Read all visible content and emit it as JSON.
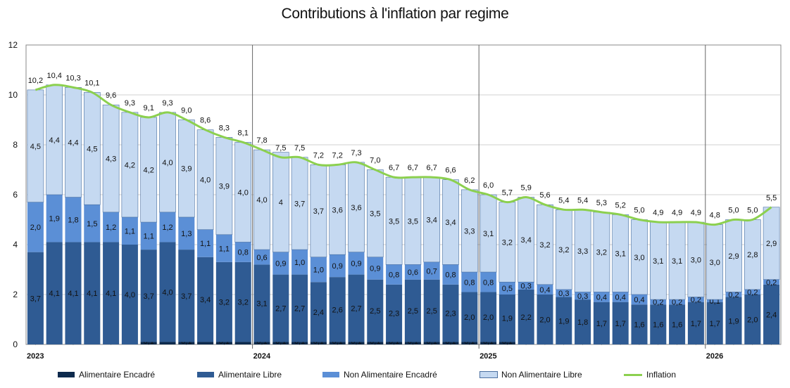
{
  "chart_data": {
    "type": "bar",
    "title": "Contributions à l'inflation par regime",
    "xlabel": "",
    "ylabel": "",
    "ylim": [
      0,
      12
    ],
    "yticks": [
      "0",
      "2",
      "4",
      "6",
      "8",
      "10",
      "12"
    ],
    "grid": true,
    "legend_position": "bottom",
    "year_labels": [
      {
        "label": "2023",
        "index": 0
      },
      {
        "label": "2024",
        "index": 12
      },
      {
        "label": "2025",
        "index": 24
      },
      {
        "label": "2026",
        "index": 36
      }
    ],
    "series": [
      {
        "name": "Alimentaire Encadré",
        "color": "#0d2a4d",
        "values": [
          0.0,
          0.0,
          0.0,
          0.0,
          0.0,
          0.0,
          0.1,
          0.1,
          0.1,
          0.1,
          0.1,
          0.1,
          0.1,
          0.1,
          0.1,
          0.1,
          0.1,
          0.1,
          0.1,
          0.1,
          0.1,
          0.1,
          0.1,
          0.1,
          0.1,
          0.1,
          0.0,
          0.0,
          0.0,
          0.0,
          0.0,
          0.0,
          0.0,
          0.0,
          0.0,
          0.0,
          0.0,
          0.0,
          0.0,
          0.0
        ],
        "labels": [
          "0,0",
          "",
          "0,0",
          "",
          "0,0",
          "",
          "0,1",
          "",
          "0,1",
          "",
          "0,1",
          "",
          "0,1",
          "0,1",
          "0,1",
          "0,1",
          "0,1",
          "0,1",
          "0,1",
          "0,1",
          "0,1",
          "0,1",
          "0,1",
          "0,1",
          "0,1",
          "0,1",
          "0,0",
          "0,0",
          "0,0",
          "0,0",
          "0,0",
          "0,0",
          "0,0",
          "0,0",
          "0,0",
          "0,0",
          "0,0",
          "0,0",
          "0,0",
          "0,0"
        ]
      },
      {
        "name": "Alimentaire Libre",
        "color": "#2f5b93",
        "values": [
          3.7,
          4.1,
          4.1,
          4.1,
          4.1,
          4.0,
          3.7,
          4.0,
          3.7,
          3.4,
          3.2,
          3.2,
          3.1,
          2.7,
          2.7,
          2.4,
          2.6,
          2.7,
          2.5,
          2.3,
          2.5,
          2.5,
          2.3,
          2.0,
          2.0,
          1.9,
          2.2,
          2.0,
          1.9,
          1.8,
          1.7,
          1.7,
          1.6,
          1.6,
          1.6,
          1.7,
          1.7,
          1.9,
          2.0,
          2.4
        ],
        "labels": [
          "3,7",
          "4,1",
          "4,1",
          "4,1",
          "4,1",
          "4,0",
          "3,7",
          "4,0",
          "3,7",
          "3,4",
          "3,2",
          "3,2",
          "3,1",
          "2,7",
          "2,7",
          "2,4",
          "2,6",
          "2,7",
          "2,5",
          "2,3",
          "2,5",
          "2,5",
          "2,3",
          "2,0",
          "2,0",
          "1,9",
          "2,2",
          "2,0",
          "1,9",
          "1,8",
          "1,7",
          "1,7",
          "1,6",
          "1,6",
          "1,6",
          "1,7",
          "1,7",
          "1,9",
          "2,0",
          "2,4"
        ]
      },
      {
        "name": "Non Alimentaire Encadré",
        "color": "#5b8fd6",
        "values": [
          2.0,
          1.9,
          1.8,
          1.5,
          1.2,
          1.1,
          1.1,
          1.2,
          1.3,
          1.1,
          1.1,
          0.8,
          0.6,
          0.9,
          1.0,
          1.0,
          0.9,
          0.9,
          0.9,
          0.8,
          0.6,
          0.7,
          0.8,
          0.8,
          0.8,
          0.5,
          0.3,
          0.4,
          0.3,
          0.3,
          0.4,
          0.4,
          0.4,
          0.2,
          0.2,
          0.2,
          0.1,
          0.2,
          0.2,
          0.2
        ],
        "labels": [
          "2,0",
          "1,9",
          "1,8",
          "1,5",
          "1,2",
          "1,1",
          "1,1",
          "1,2",
          "1,3",
          "1,1",
          "1,1",
          "0,8",
          "0,6",
          "0,9",
          "1,0",
          "1,0",
          "0,9",
          "0,9",
          "0,9",
          "0,8",
          "0,6",
          "0,7",
          "0,8",
          "0,8",
          "0,8",
          "0,5",
          "0,3",
          "0,4",
          "0,3",
          "0,3",
          "0,4",
          "0,4",
          "0,4",
          "0,2",
          "0,2",
          "0,2",
          "0,1",
          "0,2",
          "0,2",
          "0,2"
        ]
      },
      {
        "name": "Non Alimentaire Libre",
        "color": "#c5d9f1",
        "values": [
          4.5,
          4.4,
          4.4,
          4.5,
          4.3,
          4.2,
          4.2,
          4.0,
          3.9,
          4.0,
          3.9,
          4.0,
          4.0,
          4.0,
          3.7,
          3.7,
          3.6,
          3.6,
          3.5,
          3.5,
          3.5,
          3.4,
          3.4,
          3.3,
          3.1,
          3.2,
          3.4,
          3.2,
          3.2,
          3.3,
          3.2,
          3.1,
          3.0,
          3.1,
          3.1,
          3.0,
          3.0,
          2.9,
          2.8,
          2.9
        ],
        "labels": [
          "4,5",
          "4,4",
          "4,4",
          "4,5",
          "4,3",
          "4,2",
          "4,2",
          "4,0",
          "3,9",
          "4,0",
          "3,9",
          "4,0",
          "4,0",
          "4",
          "3,7",
          "3,7",
          "3,6",
          "3,6",
          "3,5",
          "3,5",
          "3,5",
          "3,4",
          "3,4",
          "3,3",
          "3,1",
          "3,2",
          "3,4",
          "3,2",
          "3,2",
          "3,3",
          "3,2",
          "3,1",
          "3,0",
          "3,1",
          "3,1",
          "3,0",
          "3,0",
          "2,9",
          "2,8",
          "2,9"
        ]
      }
    ],
    "inflation": {
      "name": "Inflation",
      "color": "#8cd04f",
      "values": [
        10.2,
        10.4,
        10.3,
        10.1,
        9.6,
        9.3,
        9.1,
        9.3,
        9.0,
        8.6,
        8.3,
        8.1,
        7.8,
        7.5,
        7.5,
        7.2,
        7.2,
        7.3,
        7.0,
        6.7,
        6.7,
        6.7,
        6.6,
        6.2,
        6.0,
        5.7,
        5.9,
        5.6,
        5.4,
        5.4,
        5.3,
        5.2,
        5.0,
        4.9,
        4.9,
        4.9,
        4.8,
        5.0,
        5.0,
        5.5
      ],
      "labels": [
        "10,2",
        "10,4",
        "10,3",
        "10,1",
        "9,6",
        "9,3",
        "9,1",
        "9,3",
        "9,0",
        "8,6",
        "8,3",
        "8,1",
        "7,8",
        "7,5",
        "7,5",
        "7,2",
        "7,2",
        "7,3",
        "7,0",
        "6,7",
        "6,7",
        "6,7",
        "6,6",
        "6,2",
        "6,0",
        "5,7",
        "5,9",
        "5,6",
        "5,4",
        "5,4",
        "5,3",
        "5,2",
        "5,0",
        "4,9",
        "4,9",
        "4,9",
        "4,8",
        "5,0",
        "5,0",
        "5,5"
      ]
    }
  }
}
